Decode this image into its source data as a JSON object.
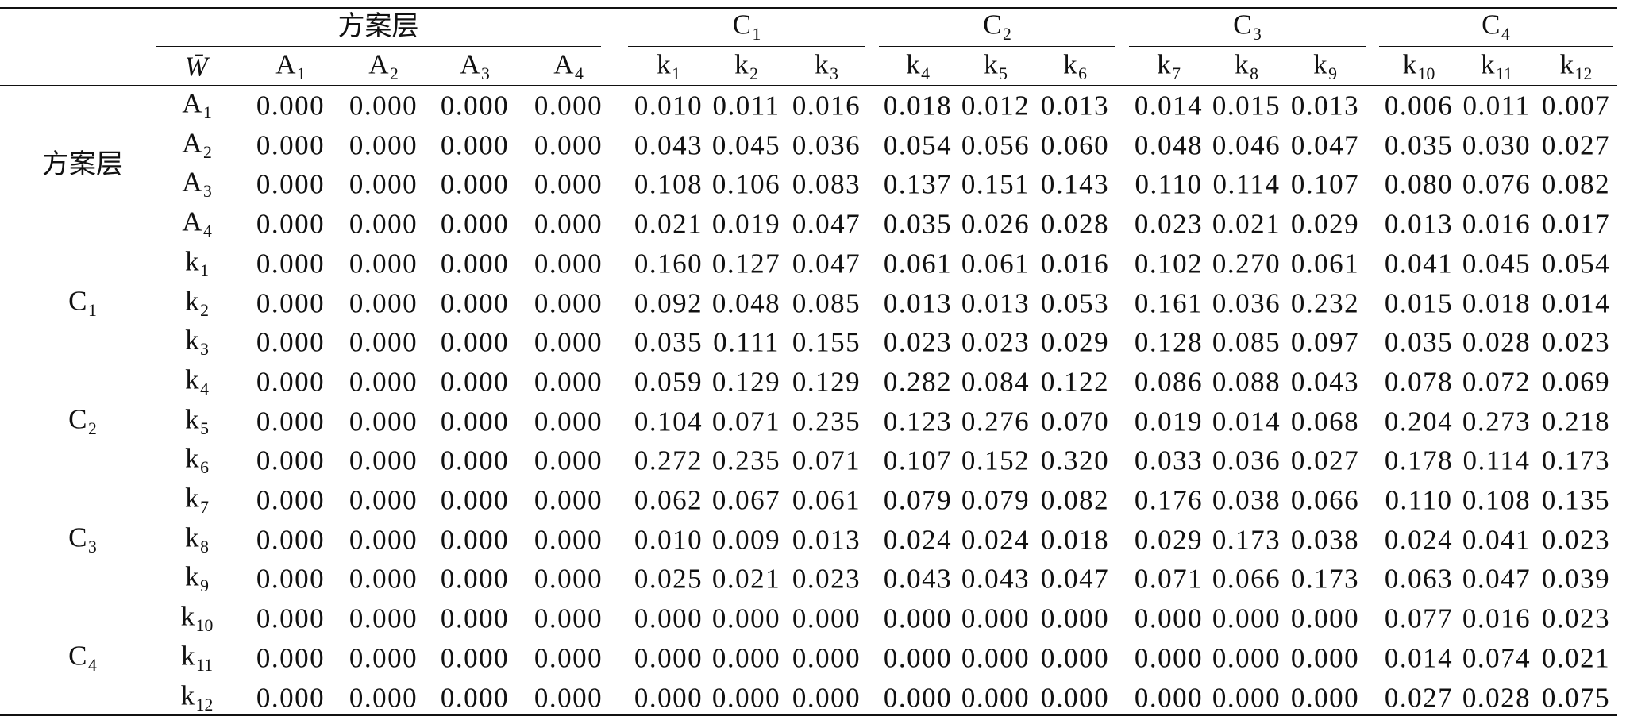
{
  "table": {
    "group_headers": [
      "方案层",
      "C1",
      "C2",
      "C3",
      "C4"
    ],
    "column_headers": [
      "W̄",
      "A1",
      "A2",
      "A3",
      "A4",
      "k1",
      "k2",
      "k3",
      "k4",
      "k5",
      "k6",
      "k7",
      "k8",
      "k9",
      "k10",
      "k11",
      "k12"
    ],
    "row_groups": [
      {
        "label": "方案层",
        "rows": [
          {
            "label": "A1",
            "values": [
              "0.000",
              "0.000",
              "0.000",
              "0.000",
              "0.010",
              "0.011",
              "0.016",
              "0.018",
              "0.012",
              "0.013",
              "0.014",
              "0.015",
              "0.013",
              "0.006",
              "0.011",
              "0.007"
            ]
          },
          {
            "label": "A2",
            "values": [
              "0.000",
              "0.000",
              "0.000",
              "0.000",
              "0.043",
              "0.045",
              "0.036",
              "0.054",
              "0.056",
              "0.060",
              "0.048",
              "0.046",
              "0.047",
              "0.035",
              "0.030",
              "0.027"
            ]
          },
          {
            "label": "A3",
            "values": [
              "0.000",
              "0.000",
              "0.000",
              "0.000",
              "0.108",
              "0.106",
              "0.083",
              "0.137",
              "0.151",
              "0.143",
              "0.110",
              "0.114",
              "0.107",
              "0.080",
              "0.076",
              "0.082"
            ]
          },
          {
            "label": "A4",
            "values": [
              "0.000",
              "0.000",
              "0.000",
              "0.000",
              "0.021",
              "0.019",
              "0.047",
              "0.035",
              "0.026",
              "0.028",
              "0.023",
              "0.021",
              "0.029",
              "0.013",
              "0.016",
              "0.017"
            ]
          }
        ]
      },
      {
        "label": "C1",
        "rows": [
          {
            "label": "k1",
            "values": [
              "0.000",
              "0.000",
              "0.000",
              "0.000",
              "0.160",
              "0.127",
              "0.047",
              "0.061",
              "0.061",
              "0.016",
              "0.102",
              "0.270",
              "0.061",
              "0.041",
              "0.045",
              "0.054"
            ]
          },
          {
            "label": "k2",
            "values": [
              "0.000",
              "0.000",
              "0.000",
              "0.000",
              "0.092",
              "0.048",
              "0.085",
              "0.013",
              "0.013",
              "0.053",
              "0.161",
              "0.036",
              "0.232",
              "0.015",
              "0.018",
              "0.014"
            ]
          },
          {
            "label": "k3",
            "values": [
              "0.000",
              "0.000",
              "0.000",
              "0.000",
              "0.035",
              "0.111",
              "0.155",
              "0.023",
              "0.023",
              "0.029",
              "0.128",
              "0.085",
              "0.097",
              "0.035",
              "0.028",
              "0.023"
            ]
          }
        ]
      },
      {
        "label": "C2",
        "rows": [
          {
            "label": "k4",
            "values": [
              "0.000",
              "0.000",
              "0.000",
              "0.000",
              "0.059",
              "0.129",
              "0.129",
              "0.282",
              "0.084",
              "0.122",
              "0.086",
              "0.088",
              "0.043",
              "0.078",
              "0.072",
              "0.069"
            ]
          },
          {
            "label": "k5",
            "values": [
              "0.000",
              "0.000",
              "0.000",
              "0.000",
              "0.104",
              "0.071",
              "0.235",
              "0.123",
              "0.276",
              "0.070",
              "0.019",
              "0.014",
              "0.068",
              "0.204",
              "0.273",
              "0.218"
            ]
          },
          {
            "label": "k6",
            "values": [
              "0.000",
              "0.000",
              "0.000",
              "0.000",
              "0.272",
              "0.235",
              "0.071",
              "0.107",
              "0.152",
              "0.320",
              "0.033",
              "0.036",
              "0.027",
              "0.178",
              "0.114",
              "0.173"
            ]
          }
        ]
      },
      {
        "label": "C3",
        "rows": [
          {
            "label": "k7",
            "values": [
              "0.000",
              "0.000",
              "0.000",
              "0.000",
              "0.062",
              "0.067",
              "0.061",
              "0.079",
              "0.079",
              "0.082",
              "0.176",
              "0.038",
              "0.066",
              "0.110",
              "0.108",
              "0.135"
            ]
          },
          {
            "label": "k8",
            "values": [
              "0.000",
              "0.000",
              "0.000",
              "0.000",
              "0.010",
              "0.009",
              "0.013",
              "0.024",
              "0.024",
              "0.018",
              "0.029",
              "0.173",
              "0.038",
              "0.024",
              "0.041",
              "0.023"
            ]
          },
          {
            "label": "k9",
            "values": [
              "0.000",
              "0.000",
              "0.000",
              "0.000",
              "0.025",
              "0.021",
              "0.023",
              "0.043",
              "0.043",
              "0.047",
              "0.071",
              "0.066",
              "0.173",
              "0.063",
              "0.047",
              "0.039"
            ]
          }
        ]
      },
      {
        "label": "C4",
        "rows": [
          {
            "label": "k10",
            "values": [
              "0.000",
              "0.000",
              "0.000",
              "0.000",
              "0.000",
              "0.000",
              "0.000",
              "0.000",
              "0.000",
              "0.000",
              "0.000",
              "0.000",
              "0.000",
              "0.077",
              "0.016",
              "0.023"
            ]
          },
          {
            "label": "k11",
            "values": [
              "0.000",
              "0.000",
              "0.000",
              "0.000",
              "0.000",
              "0.000",
              "0.000",
              "0.000",
              "0.000",
              "0.000",
              "0.000",
              "0.000",
              "0.000",
              "0.014",
              "0.074",
              "0.021"
            ]
          },
          {
            "label": "k12",
            "values": [
              "0.000",
              "0.000",
              "0.000",
              "0.000",
              "0.000",
              "0.000",
              "0.000",
              "0.000",
              "0.000",
              "0.000",
              "0.000",
              "0.000",
              "0.000",
              "0.027",
              "0.028",
              "0.075"
            ]
          }
        ]
      }
    ]
  }
}
